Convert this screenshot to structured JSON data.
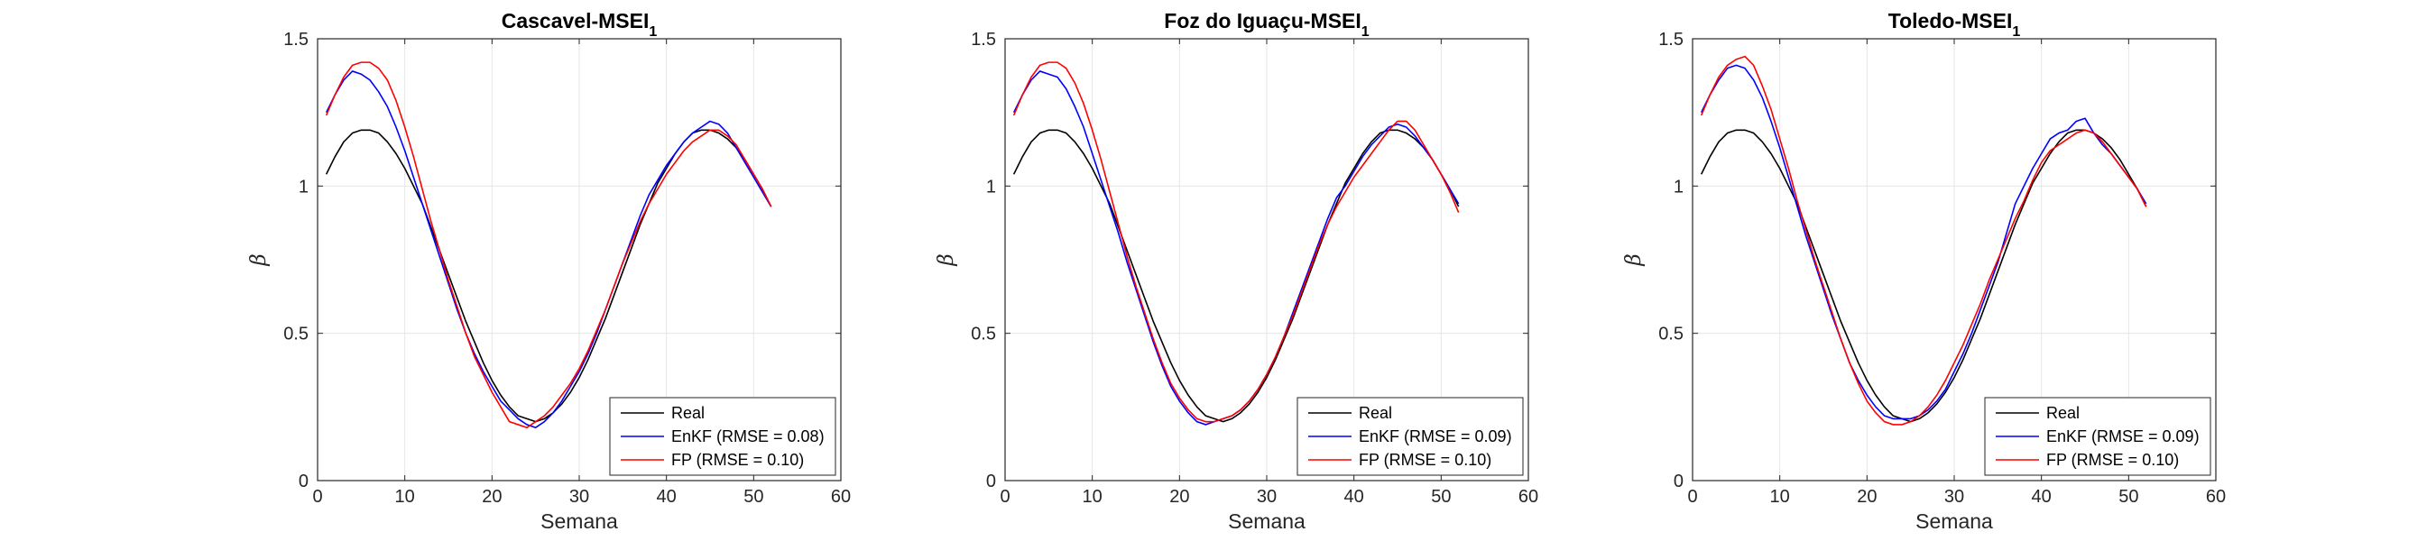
{
  "chart_data": [
    {
      "type": "line",
      "title": "Cascavel-MSEI",
      "title_subscript": "1",
      "xlabel": "Semana",
      "ylabel": "β",
      "xlim": [
        0,
        60
      ],
      "ylim": [
        0,
        1.5
      ],
      "xticks": [
        "0",
        "10",
        "20",
        "30",
        "40",
        "50",
        "60"
      ],
      "yticks": [
        "0",
        "0.5",
        "1",
        "1.5"
      ],
      "grid": true,
      "legend_position": "bottom-right",
      "series": [
        {
          "name": "Real",
          "color": "#000000",
          "x": [
            1,
            2,
            3,
            4,
            5,
            6,
            7,
            8,
            9,
            10,
            11,
            12,
            13,
            14,
            15,
            16,
            17,
            18,
            19,
            20,
            21,
            22,
            23,
            24,
            25,
            26,
            27,
            28,
            29,
            30,
            31,
            32,
            33,
            34,
            35,
            36,
            37,
            38,
            39,
            40,
            41,
            42,
            43,
            44,
            45,
            46,
            47,
            48,
            49,
            50,
            51,
            52
          ],
          "y": [
            1.04,
            1.1,
            1.15,
            1.18,
            1.19,
            1.19,
            1.18,
            1.15,
            1.11,
            1.06,
            1.0,
            0.94,
            0.86,
            0.78,
            0.7,
            0.62,
            0.54,
            0.47,
            0.4,
            0.34,
            0.29,
            0.25,
            0.22,
            0.21,
            0.2,
            0.21,
            0.23,
            0.26,
            0.3,
            0.35,
            0.41,
            0.48,
            0.55,
            0.63,
            0.71,
            0.79,
            0.87,
            0.94,
            1.01,
            1.06,
            1.11,
            1.15,
            1.18,
            1.19,
            1.19,
            1.18,
            1.16,
            1.13,
            1.09,
            1.04,
            0.99,
            0.93
          ]
        },
        {
          "name": "EnKF (RMSE = 0.08)",
          "color": "#0000ff",
          "x": [
            1,
            2,
            3,
            4,
            5,
            6,
            7,
            8,
            9,
            10,
            11,
            12,
            13,
            14,
            15,
            16,
            17,
            18,
            19,
            20,
            21,
            22,
            23,
            24,
            25,
            26,
            27,
            28,
            29,
            30,
            31,
            32,
            33,
            34,
            35,
            36,
            37,
            38,
            39,
            40,
            41,
            42,
            43,
            44,
            45,
            46,
            47,
            48,
            49,
            50,
            51,
            52
          ],
          "y": [
            1.25,
            1.31,
            1.36,
            1.39,
            1.38,
            1.36,
            1.32,
            1.27,
            1.2,
            1.12,
            1.03,
            0.94,
            0.85,
            0.76,
            0.67,
            0.58,
            0.5,
            0.43,
            0.37,
            0.32,
            0.27,
            0.24,
            0.21,
            0.19,
            0.18,
            0.2,
            0.23,
            0.27,
            0.32,
            0.37,
            0.43,
            0.5,
            0.58,
            0.66,
            0.74,
            0.82,
            0.9,
            0.97,
            1.02,
            1.07,
            1.11,
            1.15,
            1.18,
            1.2,
            1.22,
            1.21,
            1.18,
            1.13,
            1.08,
            1.03,
            0.98,
            0.93
          ]
        },
        {
          "name": "FP (RMSE = 0.10)",
          "color": "#ff0000",
          "x": [
            1,
            2,
            3,
            4,
            5,
            6,
            7,
            8,
            9,
            10,
            11,
            12,
            13,
            14,
            15,
            16,
            17,
            18,
            19,
            20,
            21,
            22,
            23,
            24,
            25,
            26,
            27,
            28,
            29,
            30,
            31,
            32,
            33,
            34,
            35,
            36,
            37,
            38,
            39,
            40,
            41,
            42,
            43,
            44,
            45,
            46,
            47,
            48,
            49,
            50,
            51,
            52
          ],
          "y": [
            1.24,
            1.31,
            1.37,
            1.41,
            1.42,
            1.42,
            1.4,
            1.36,
            1.29,
            1.2,
            1.1,
            0.99,
            0.88,
            0.78,
            0.68,
            0.59,
            0.5,
            0.42,
            0.36,
            0.3,
            0.25,
            0.2,
            0.19,
            0.18,
            0.2,
            0.22,
            0.25,
            0.29,
            0.33,
            0.38,
            0.44,
            0.51,
            0.58,
            0.66,
            0.74,
            0.81,
            0.88,
            0.94,
            0.99,
            1.04,
            1.08,
            1.12,
            1.15,
            1.17,
            1.19,
            1.19,
            1.17,
            1.14,
            1.09,
            1.04,
            0.99,
            0.93
          ]
        }
      ]
    },
    {
      "type": "line",
      "title": "Foz do Iguaçu-MSEI",
      "title_subscript": "1",
      "xlabel": "Semana",
      "ylabel": "β",
      "xlim": [
        0,
        60
      ],
      "ylim": [
        0,
        1.5
      ],
      "xticks": [
        "0",
        "10",
        "20",
        "30",
        "40",
        "50",
        "60"
      ],
      "yticks": [
        "0",
        "0.5",
        "1",
        "1.5"
      ],
      "grid": true,
      "legend_position": "bottom-right",
      "series": [
        {
          "name": "Real",
          "color": "#000000",
          "x": [
            1,
            2,
            3,
            4,
            5,
            6,
            7,
            8,
            9,
            10,
            11,
            12,
            13,
            14,
            15,
            16,
            17,
            18,
            19,
            20,
            21,
            22,
            23,
            24,
            25,
            26,
            27,
            28,
            29,
            30,
            31,
            32,
            33,
            34,
            35,
            36,
            37,
            38,
            39,
            40,
            41,
            42,
            43,
            44,
            45,
            46,
            47,
            48,
            49,
            50,
            51,
            52
          ],
          "y": [
            1.04,
            1.1,
            1.15,
            1.18,
            1.19,
            1.19,
            1.18,
            1.15,
            1.11,
            1.06,
            1.0,
            0.94,
            0.86,
            0.78,
            0.7,
            0.62,
            0.54,
            0.47,
            0.4,
            0.34,
            0.29,
            0.25,
            0.22,
            0.21,
            0.2,
            0.21,
            0.23,
            0.26,
            0.3,
            0.35,
            0.41,
            0.48,
            0.55,
            0.63,
            0.71,
            0.79,
            0.87,
            0.94,
            1.01,
            1.06,
            1.11,
            1.15,
            1.18,
            1.19,
            1.19,
            1.18,
            1.16,
            1.13,
            1.09,
            1.04,
            0.99,
            0.93
          ]
        },
        {
          "name": "EnKF (RMSE = 0.09)",
          "color": "#0000ff",
          "x": [
            1,
            2,
            3,
            4,
            5,
            6,
            7,
            8,
            9,
            10,
            11,
            12,
            13,
            14,
            15,
            16,
            17,
            18,
            19,
            20,
            21,
            22,
            23,
            24,
            25,
            26,
            27,
            28,
            29,
            30,
            31,
            32,
            33,
            34,
            35,
            36,
            37,
            38,
            39,
            40,
            41,
            42,
            43,
            44,
            45,
            46,
            47,
            48,
            49,
            50,
            51,
            52
          ],
          "y": [
            1.25,
            1.31,
            1.36,
            1.39,
            1.38,
            1.37,
            1.33,
            1.27,
            1.2,
            1.11,
            1.02,
            0.93,
            0.84,
            0.74,
            0.65,
            0.56,
            0.47,
            0.39,
            0.32,
            0.27,
            0.23,
            0.2,
            0.19,
            0.2,
            0.21,
            0.22,
            0.24,
            0.27,
            0.31,
            0.36,
            0.42,
            0.49,
            0.57,
            0.65,
            0.73,
            0.81,
            0.89,
            0.96,
            1.0,
            1.05,
            1.1,
            1.14,
            1.17,
            1.2,
            1.21,
            1.2,
            1.17,
            1.13,
            1.09,
            1.04,
            0.99,
            0.94
          ]
        },
        {
          "name": "FP (RMSE = 0.10)",
          "color": "#ff0000",
          "x": [
            1,
            2,
            3,
            4,
            5,
            6,
            7,
            8,
            9,
            10,
            11,
            12,
            13,
            14,
            15,
            16,
            17,
            18,
            19,
            20,
            21,
            22,
            23,
            24,
            25,
            26,
            27,
            28,
            29,
            30,
            31,
            32,
            33,
            34,
            35,
            36,
            37,
            38,
            39,
            40,
            41,
            42,
            43,
            44,
            45,
            46,
            47,
            48,
            49,
            50,
            51,
            52
          ],
          "y": [
            1.24,
            1.31,
            1.37,
            1.41,
            1.42,
            1.42,
            1.4,
            1.35,
            1.28,
            1.19,
            1.09,
            0.98,
            0.87,
            0.76,
            0.66,
            0.57,
            0.48,
            0.4,
            0.33,
            0.28,
            0.24,
            0.21,
            0.2,
            0.2,
            0.21,
            0.22,
            0.24,
            0.27,
            0.31,
            0.36,
            0.42,
            0.49,
            0.56,
            0.64,
            0.72,
            0.8,
            0.87,
            0.93,
            0.98,
            1.03,
            1.07,
            1.11,
            1.15,
            1.19,
            1.22,
            1.22,
            1.19,
            1.14,
            1.09,
            1.04,
            0.98,
            0.91
          ]
        }
      ]
    },
    {
      "type": "line",
      "title": "Toledo-MSEI",
      "title_subscript": "1",
      "xlabel": "Semana",
      "ylabel": "β",
      "xlim": [
        0,
        60
      ],
      "ylim": [
        0,
        1.5
      ],
      "xticks": [
        "0",
        "10",
        "20",
        "30",
        "40",
        "50",
        "60"
      ],
      "yticks": [
        "0",
        "0.5",
        "1",
        "1.5"
      ],
      "grid": true,
      "legend_position": "bottom-right",
      "series": [
        {
          "name": "Real",
          "color": "#000000",
          "x": [
            1,
            2,
            3,
            4,
            5,
            6,
            7,
            8,
            9,
            10,
            11,
            12,
            13,
            14,
            15,
            16,
            17,
            18,
            19,
            20,
            21,
            22,
            23,
            24,
            25,
            26,
            27,
            28,
            29,
            30,
            31,
            32,
            33,
            34,
            35,
            36,
            37,
            38,
            39,
            40,
            41,
            42,
            43,
            44,
            45,
            46,
            47,
            48,
            49,
            50,
            51,
            52
          ],
          "y": [
            1.04,
            1.1,
            1.15,
            1.18,
            1.19,
            1.19,
            1.18,
            1.15,
            1.11,
            1.06,
            1.0,
            0.94,
            0.86,
            0.78,
            0.7,
            0.62,
            0.54,
            0.47,
            0.4,
            0.34,
            0.29,
            0.25,
            0.22,
            0.21,
            0.2,
            0.21,
            0.23,
            0.26,
            0.3,
            0.35,
            0.41,
            0.48,
            0.55,
            0.63,
            0.71,
            0.79,
            0.87,
            0.94,
            1.01,
            1.06,
            1.11,
            1.15,
            1.18,
            1.19,
            1.19,
            1.18,
            1.16,
            1.13,
            1.09,
            1.04,
            0.99,
            0.93
          ]
        },
        {
          "name": "EnKF (RMSE = 0.09)",
          "color": "#0000ff",
          "x": [
            1,
            2,
            3,
            4,
            5,
            6,
            7,
            8,
            9,
            10,
            11,
            12,
            13,
            14,
            15,
            16,
            17,
            18,
            19,
            20,
            21,
            22,
            23,
            24,
            25,
            26,
            27,
            28,
            29,
            30,
            31,
            32,
            33,
            34,
            35,
            36,
            37,
            38,
            39,
            40,
            41,
            42,
            43,
            44,
            45,
            46,
            47,
            48,
            49,
            50,
            51,
            52
          ],
          "y": [
            1.25,
            1.31,
            1.36,
            1.4,
            1.41,
            1.4,
            1.36,
            1.3,
            1.22,
            1.13,
            1.03,
            0.93,
            0.83,
            0.74,
            0.65,
            0.56,
            0.48,
            0.4,
            0.34,
            0.29,
            0.25,
            0.22,
            0.21,
            0.21,
            0.21,
            0.22,
            0.24,
            0.27,
            0.31,
            0.37,
            0.43,
            0.5,
            0.58,
            0.66,
            0.74,
            0.84,
            0.94,
            1.0,
            1.06,
            1.11,
            1.16,
            1.18,
            1.19,
            1.22,
            1.23,
            1.18,
            1.14,
            1.11,
            1.07,
            1.03,
            0.99,
            0.94
          ]
        },
        {
          "name": "FP (RMSE = 0.10)",
          "color": "#ff0000",
          "x": [
            1,
            2,
            3,
            4,
            5,
            6,
            7,
            8,
            9,
            10,
            11,
            12,
            13,
            14,
            15,
            16,
            17,
            18,
            19,
            20,
            21,
            22,
            23,
            24,
            25,
            26,
            27,
            28,
            29,
            30,
            31,
            32,
            33,
            34,
            35,
            36,
            37,
            38,
            39,
            40,
            41,
            42,
            43,
            44,
            45,
            46,
            47,
            48,
            49,
            50,
            51,
            52
          ],
          "y": [
            1.24,
            1.31,
            1.37,
            1.41,
            1.43,
            1.44,
            1.41,
            1.34,
            1.26,
            1.16,
            1.06,
            0.95,
            0.85,
            0.75,
            0.66,
            0.57,
            0.48,
            0.4,
            0.33,
            0.27,
            0.23,
            0.2,
            0.19,
            0.19,
            0.2,
            0.22,
            0.25,
            0.29,
            0.34,
            0.4,
            0.46,
            0.53,
            0.6,
            0.68,
            0.75,
            0.82,
            0.89,
            0.95,
            1.02,
            1.08,
            1.12,
            1.14,
            1.16,
            1.18,
            1.19,
            1.18,
            1.15,
            1.11,
            1.07,
            1.03,
            0.99,
            0.93
          ]
        }
      ]
    }
  ]
}
